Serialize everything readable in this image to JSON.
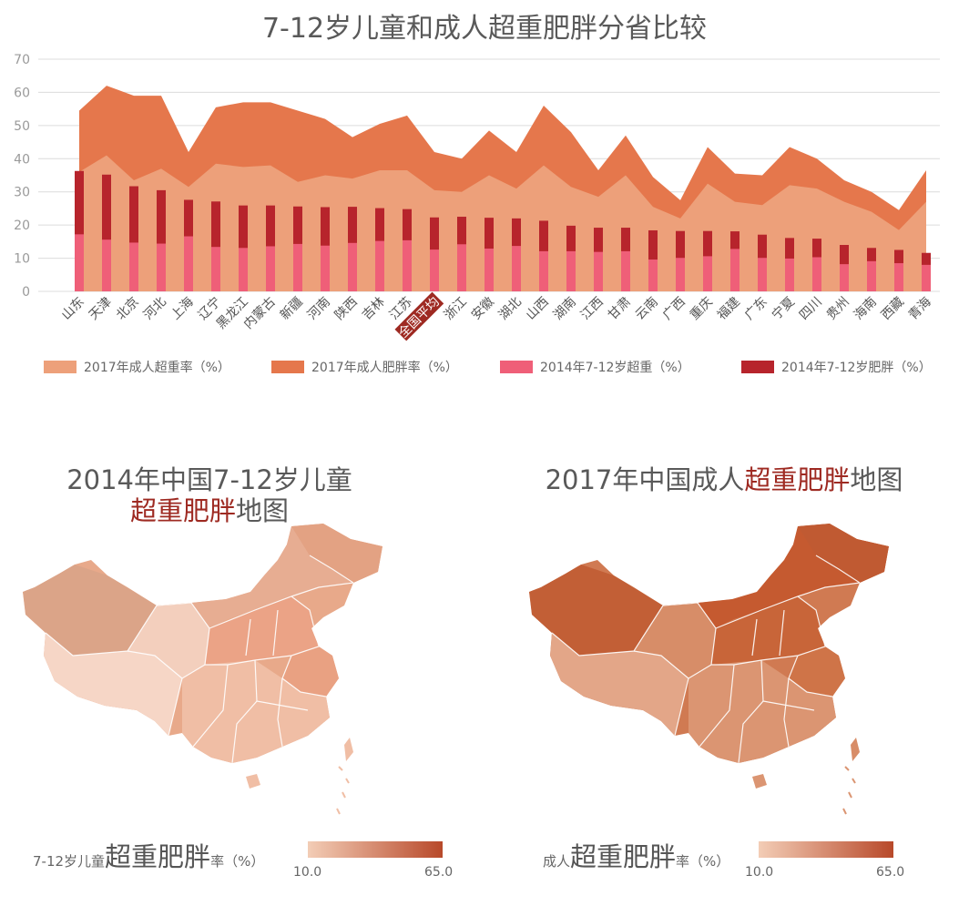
{
  "chart_data": {
    "type": "bar",
    "title": "7-12岁儿童和成人超重肥胖分省比较",
    "categories": [
      "山东",
      "天津",
      "北京",
      "河北",
      "上海",
      "辽宁",
      "黑龙江",
      "内蒙古",
      "新疆",
      "河南",
      "陕西",
      "吉林",
      "江苏",
      "全国平均",
      "浙江",
      "安徽",
      "湖北",
      "山西",
      "湖南",
      "江西",
      "甘肃",
      "云南",
      "广西",
      "重庆",
      "福建",
      "广东",
      "宁夏",
      "四川",
      "贵州",
      "海南",
      "西藏",
      "青海"
    ],
    "ylim": [
      0,
      70
    ],
    "yticks": [
      "0",
      "10",
      "20",
      "30",
      "40",
      "50",
      "60",
      "70"
    ],
    "grid": true,
    "legend_placement": "bottom",
    "highlight_category": "全国平均",
    "series": [
      {
        "name": "2017年成人超重率（%）",
        "kind": "area",
        "color": "#eda07a",
        "values": [
          36,
          41,
          33.5,
          37,
          31.5,
          38.5,
          37.5,
          38,
          33,
          35,
          34,
          36.5,
          36.5,
          30.5,
          30,
          35,
          31,
          38,
          31.5,
          28.5,
          35,
          25.5,
          22,
          32.5,
          27,
          26,
          32,
          31,
          27,
          24,
          18.5,
          27
        ]
      },
      {
        "name": "2017年成人肥胖率（%）",
        "kind": "area",
        "color": "#e5774c",
        "values": [
          54.5,
          62,
          59,
          59,
          42,
          55.5,
          57,
          57,
          54.5,
          52,
          46.5,
          50.5,
          53,
          42,
          40,
          48.5,
          42,
          56,
          48,
          36.5,
          47,
          34.5,
          27.5,
          43.5,
          35.5,
          35,
          43.5,
          40,
          33.5,
          30,
          24.5,
          36.5
        ]
      },
      {
        "name": "2014年7-12岁超重（%）",
        "kind": "bar",
        "color": "#ef5f78",
        "values": [
          17.2,
          15.6,
          14.7,
          14.4,
          16.6,
          13.4,
          13.1,
          13.6,
          14.3,
          13.8,
          14.6,
          15.2,
          15.4,
          12.6,
          14.2,
          12.9,
          13.7,
          12.1,
          12.1,
          11.9,
          12.1,
          9.6,
          10.1,
          10.6,
          12.8,
          10.1,
          9.9,
          10.3,
          8.2,
          9.1,
          8.5,
          8.0
        ]
      },
      {
        "name": "2014年7-12岁肥胖（%）",
        "kind": "bar",
        "color": "#b7242c",
        "values": [
          36.3,
          35.2,
          31.7,
          30.5,
          27.6,
          27.1,
          25.9,
          25.9,
          25.6,
          25.4,
          25.5,
          25.1,
          24.8,
          22.3,
          22.5,
          22.2,
          22.0,
          21.3,
          19.8,
          19.2,
          19.2,
          18.4,
          18.2,
          18.2,
          18.1,
          17.1,
          16.1,
          15.9,
          14.0,
          13.1,
          12.5,
          11.6
        ]
      }
    ]
  },
  "maps": {
    "left": {
      "title_line1": "2014年中国7-12岁儿童",
      "title_highlight": "超重肥胖",
      "title_suffix": "地图",
      "scale_prefix": "7-12岁儿童",
      "scale_big": "超重肥胖",
      "scale_suffix": "率（%）",
      "scale_min": "10.0",
      "scale_max": "65.0",
      "color_low": "#f3cdb6",
      "color_high": "#b8492a"
    },
    "right": {
      "title_prefix": "2017年中国成人",
      "title_highlight": "超重肥胖",
      "title_suffix": "地图",
      "scale_prefix": "成人",
      "scale_big": "超重肥胖",
      "scale_suffix": "率（%）",
      "scale_min": "10.0",
      "scale_max": "65.0",
      "color_low": "#f3cdb6",
      "color_high": "#b8492a"
    }
  }
}
